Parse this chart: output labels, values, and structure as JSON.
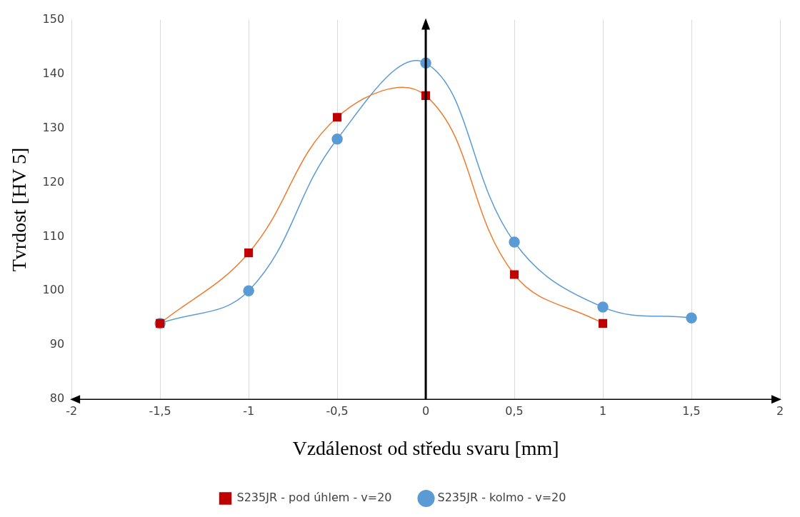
{
  "chart_data": {
    "type": "line",
    "xlabel": "Vzdálenost od středu svaru [mm]",
    "ylabel": "Tvrdost [HV 5]",
    "series": [
      {
        "name": "S235JR - kolmo - v=20",
        "color": "#5b9bd5",
        "marker": "circle",
        "x": [
          -1.5,
          -1,
          -0.5,
          0,
          0.5,
          1,
          1.5
        ],
        "values": [
          94,
          100,
          128,
          142,
          109,
          97,
          95
        ]
      },
      {
        "name": "S235JR - pod úhlem - v=20",
        "color": "#ed7d31",
        "colors": [
          "#c00000",
          "#c00000",
          "#c00000",
          "#c00000",
          "#c00000",
          "#c00000"
        ],
        "marker": "square",
        "x": [
          -1.5,
          -1,
          -0.5,
          0,
          0.5,
          1
        ],
        "values": [
          94,
          107,
          132,
          136,
          103,
          94
        ]
      }
    ],
    "xlim": [
      -2,
      2
    ],
    "xticks": [
      -2,
      {
        "value": -1.5,
        "label": "-1,5"
      },
      -1,
      {
        "value": -0.5,
        "label": "-0,5"
      },
      0,
      {
        "value": 0.5,
        "label": "0,5"
      },
      1,
      {
        "value": 1.5,
        "label": "1,5"
      },
      2
    ],
    "ylim": [
      80,
      150
    ],
    "yticks": [
      80,
      90,
      100,
      110,
      120,
      130,
      140,
      150
    ],
    "grid": "x",
    "legend": "bottom",
    "ref_lines": [
      {
        "axis": "x",
        "value": 0,
        "color": "#000000"
      }
    ]
  }
}
